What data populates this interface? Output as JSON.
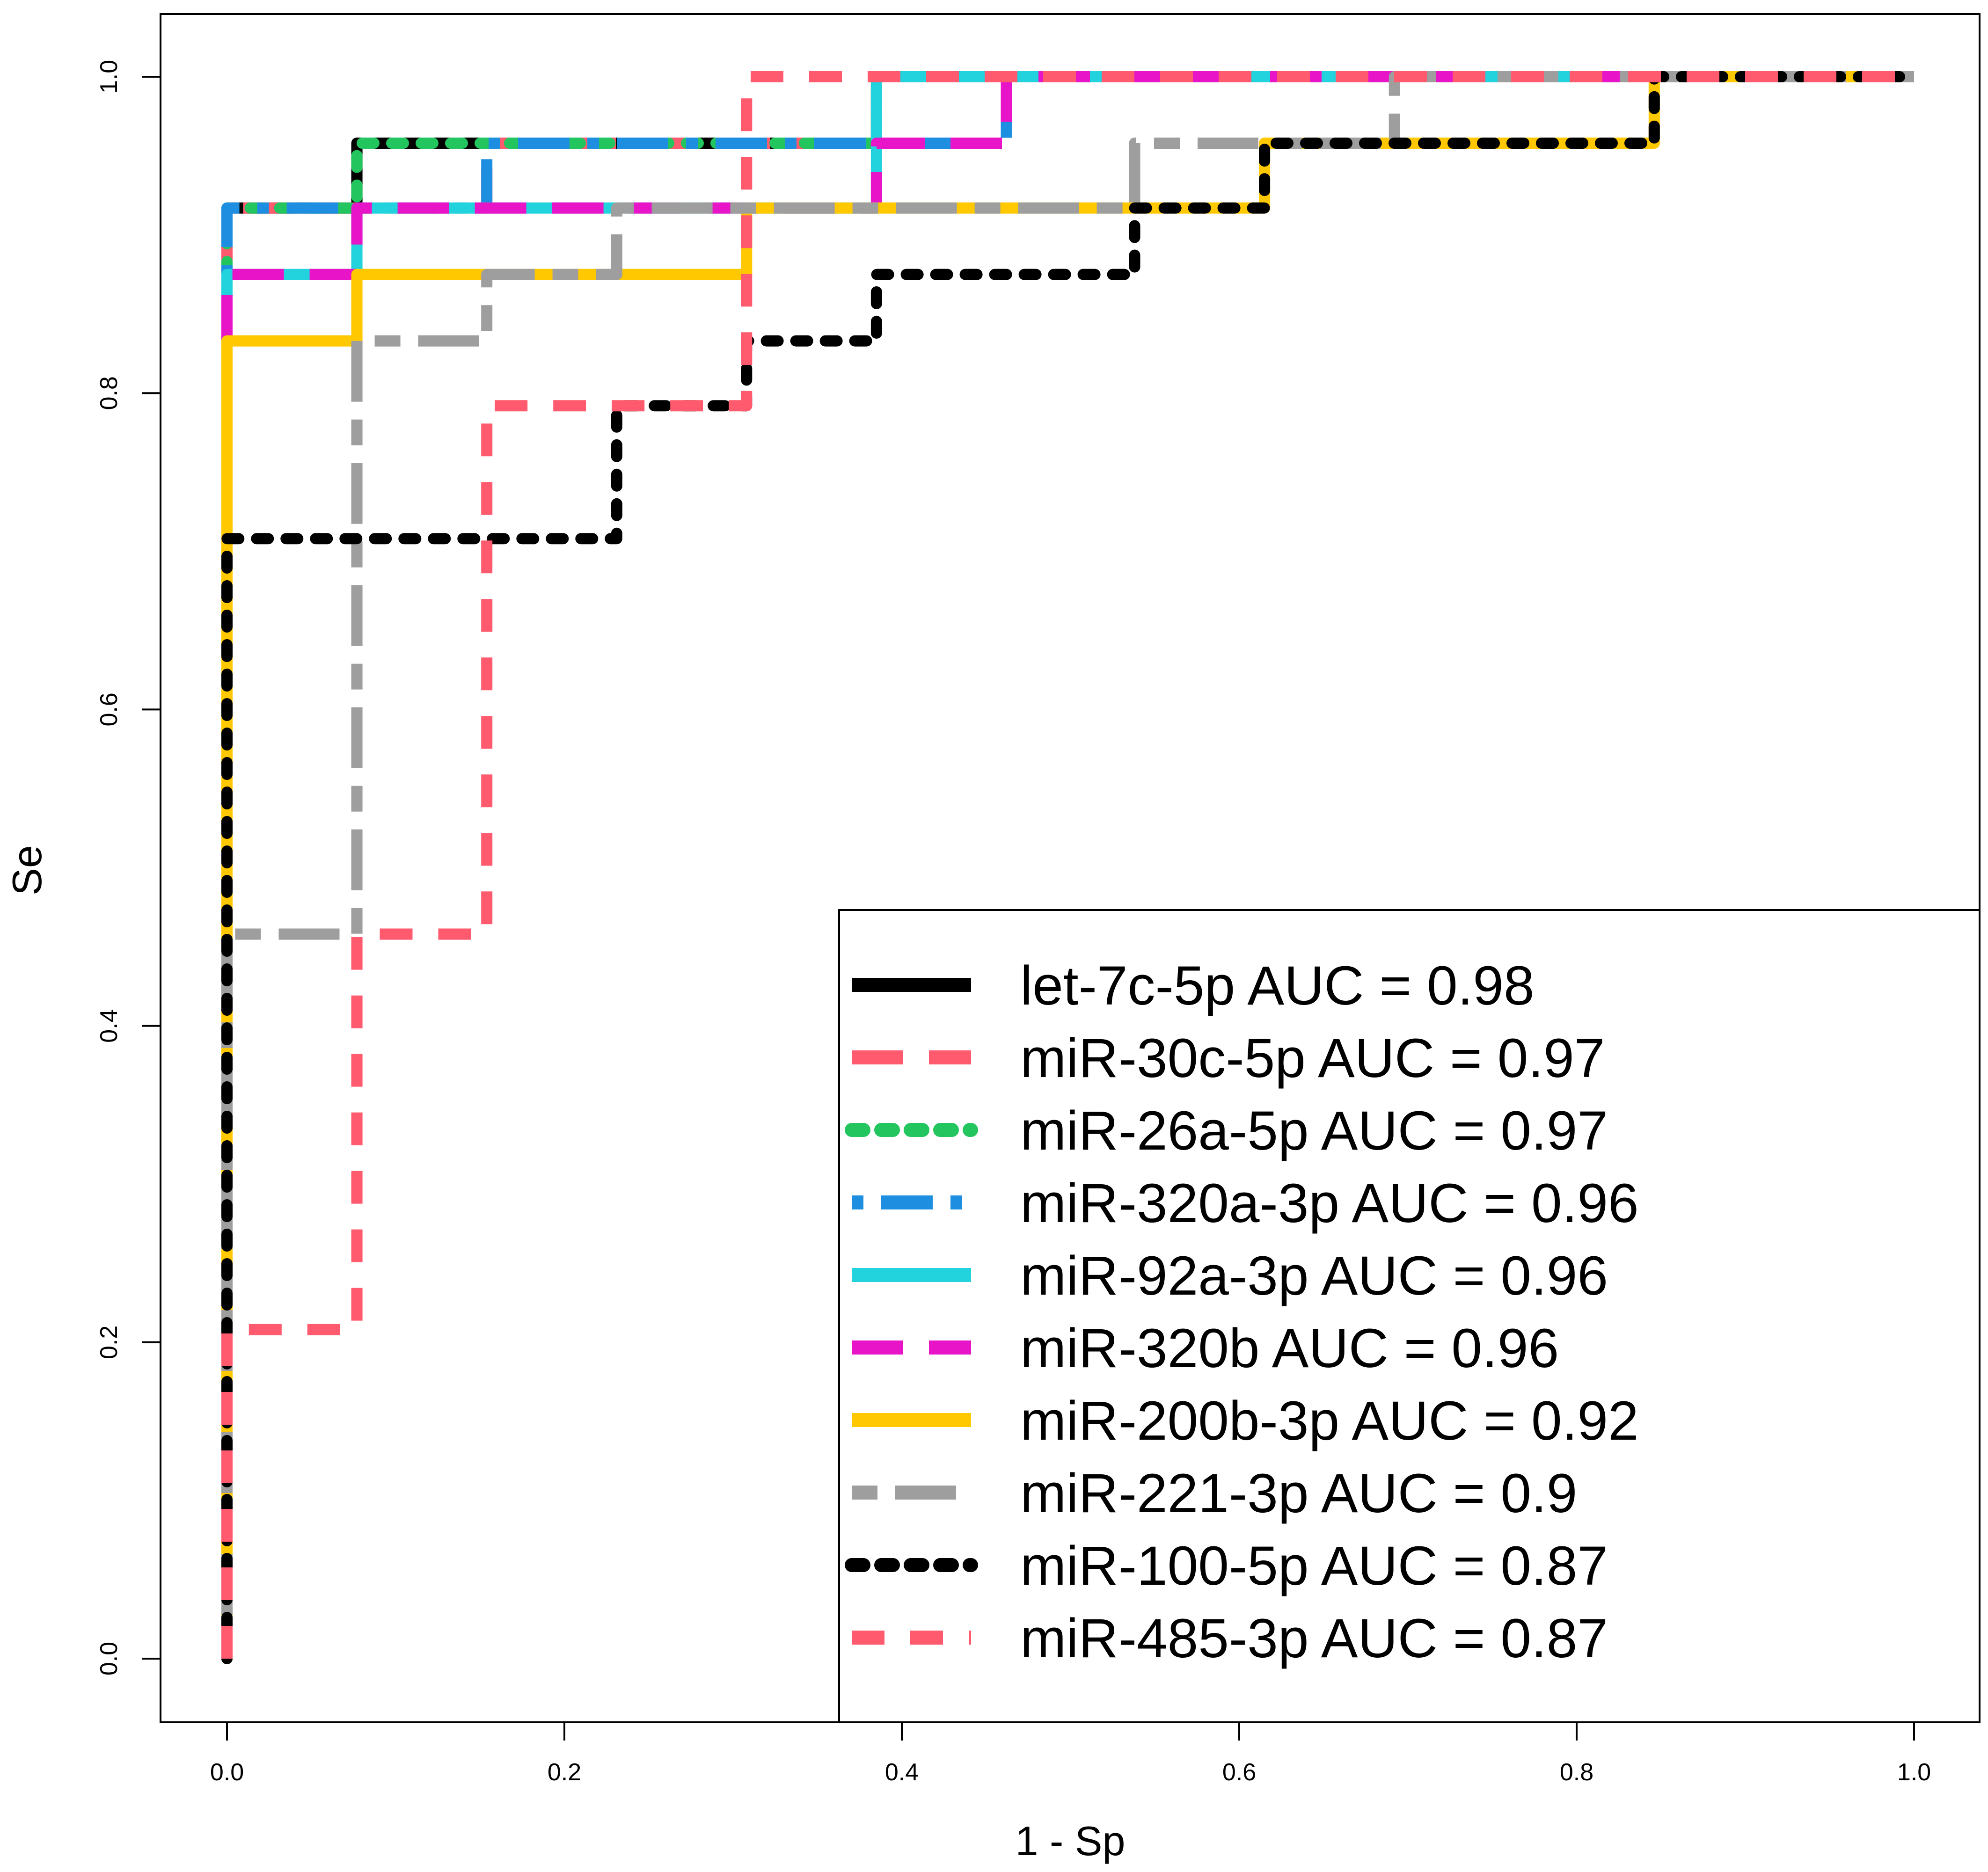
{
  "chart_data": {
    "type": "line",
    "title": "",
    "xlabel": "1 - Sp",
    "ylabel": "Se",
    "xlim": [
      0,
      1
    ],
    "ylim": [
      0,
      1
    ],
    "x_ticks": [
      "0.0",
      "0.2",
      "0.4",
      "0.6",
      "0.8",
      "1.0"
    ],
    "y_ticks": [
      "0.0",
      "0.2",
      "0.4",
      "0.6",
      "0.8",
      "1.0"
    ],
    "grid": false,
    "legend_position": "bottom-right",
    "series": [
      {
        "name": "let-7c-5p AUC =  0.98",
        "color": "#000000",
        "dash": "solid",
        "points": [
          [
            0,
            0
          ],
          [
            0,
            0.917
          ],
          [
            0.077,
            0.917
          ],
          [
            0.077,
            0.958
          ],
          [
            0.385,
            0.958
          ],
          [
            0.385,
            1
          ],
          [
            1,
            1
          ]
        ]
      },
      {
        "name": "miR-30c-5p AUC =  0.97",
        "color": "#FF5A6E",
        "dash": "longdash",
        "points": [
          [
            0,
            0
          ],
          [
            0,
            0.917
          ],
          [
            0.154,
            0.917
          ],
          [
            0.154,
            0.958
          ],
          [
            0.385,
            0.958
          ],
          [
            0.385,
            1
          ],
          [
            1,
            1
          ]
        ]
      },
      {
        "name": "miR-26a-5p AUC =  0.97",
        "color": "#22C55E",
        "dash": "dotted",
        "points": [
          [
            0,
            0
          ],
          [
            0,
            0.917
          ],
          [
            0.077,
            0.917
          ],
          [
            0.077,
            0.958
          ],
          [
            0.385,
            0.958
          ],
          [
            0.385,
            1
          ],
          [
            1,
            1
          ]
        ]
      },
      {
        "name": "miR-320a-3p AUC =  0.96",
        "color": "#1E8FE0",
        "dash": "dotdash",
        "points": [
          [
            0,
            0
          ],
          [
            0,
            0.917
          ],
          [
            0.154,
            0.917
          ],
          [
            0.154,
            0.958
          ],
          [
            0.462,
            0.958
          ],
          [
            0.462,
            1
          ],
          [
            1,
            1
          ]
        ]
      },
      {
        "name": "miR-92a-3p AUC =  0.96",
        "color": "#22D3DE",
        "dash": "solid",
        "points": [
          [
            0,
            0
          ],
          [
            0,
            0.875
          ],
          [
            0.077,
            0.875
          ],
          [
            0.077,
            0.917
          ],
          [
            0.385,
            0.917
          ],
          [
            0.385,
            1
          ],
          [
            1,
            1
          ]
        ]
      },
      {
        "name": "miR-320b AUC =  0.96",
        "color": "#E815C8",
        "dash": "longdash",
        "points": [
          [
            0,
            0
          ],
          [
            0,
            0.875
          ],
          [
            0.077,
            0.875
          ],
          [
            0.077,
            0.917
          ],
          [
            0.385,
            0.917
          ],
          [
            0.385,
            0.958
          ],
          [
            0.462,
            0.958
          ],
          [
            0.462,
            1
          ],
          [
            1,
            1
          ]
        ]
      },
      {
        "name": "miR-200b-3p AUC =  0.92",
        "color": "#FFC800",
        "dash": "solid",
        "points": [
          [
            0,
            0
          ],
          [
            0,
            0.833
          ],
          [
            0.077,
            0.833
          ],
          [
            0.077,
            0.875
          ],
          [
            0.308,
            0.875
          ],
          [
            0.308,
            0.917
          ],
          [
            0.615,
            0.917
          ],
          [
            0.615,
            0.958
          ],
          [
            0.846,
            0.958
          ],
          [
            0.846,
            1
          ],
          [
            1,
            1
          ]
        ]
      },
      {
        "name": "miR-221-3p AUC =  0.9",
        "color": "#9E9E9E",
        "dash": "twodash",
        "points": [
          [
            0,
            0
          ],
          [
            0,
            0.458
          ],
          [
            0.077,
            0.458
          ],
          [
            0.077,
            0.833
          ],
          [
            0.154,
            0.833
          ],
          [
            0.154,
            0.875
          ],
          [
            0.231,
            0.875
          ],
          [
            0.231,
            0.917
          ],
          [
            0.538,
            0.917
          ],
          [
            0.538,
            0.958
          ],
          [
            0.692,
            0.958
          ],
          [
            0.692,
            1
          ],
          [
            1,
            1
          ]
        ]
      },
      {
        "name": "miR-100-5p AUC =  0.87",
        "color": "#000000",
        "dash": "dotted",
        "points": [
          [
            0,
            0
          ],
          [
            0,
            0.708
          ],
          [
            0.231,
            0.708
          ],
          [
            0.231,
            0.792
          ],
          [
            0.308,
            0.792
          ],
          [
            0.308,
            0.833
          ],
          [
            0.385,
            0.833
          ],
          [
            0.385,
            0.875
          ],
          [
            0.538,
            0.875
          ],
          [
            0.538,
            0.917
          ],
          [
            0.615,
            0.917
          ],
          [
            0.615,
            0.958
          ],
          [
            0.846,
            0.958
          ],
          [
            0.846,
            1
          ],
          [
            1,
            1
          ]
        ]
      },
      {
        "name": "miR-485-3p AUC =  0.87",
        "color": "#FF5A6E",
        "dash": "dashed",
        "points": [
          [
            0,
            0
          ],
          [
            0,
            0.208
          ],
          [
            0.077,
            0.208
          ],
          [
            0.077,
            0.458
          ],
          [
            0.154,
            0.458
          ],
          [
            0.154,
            0.792
          ],
          [
            0.308,
            0.792
          ],
          [
            0.308,
            1
          ],
          [
            1,
            1
          ]
        ]
      }
    ]
  }
}
